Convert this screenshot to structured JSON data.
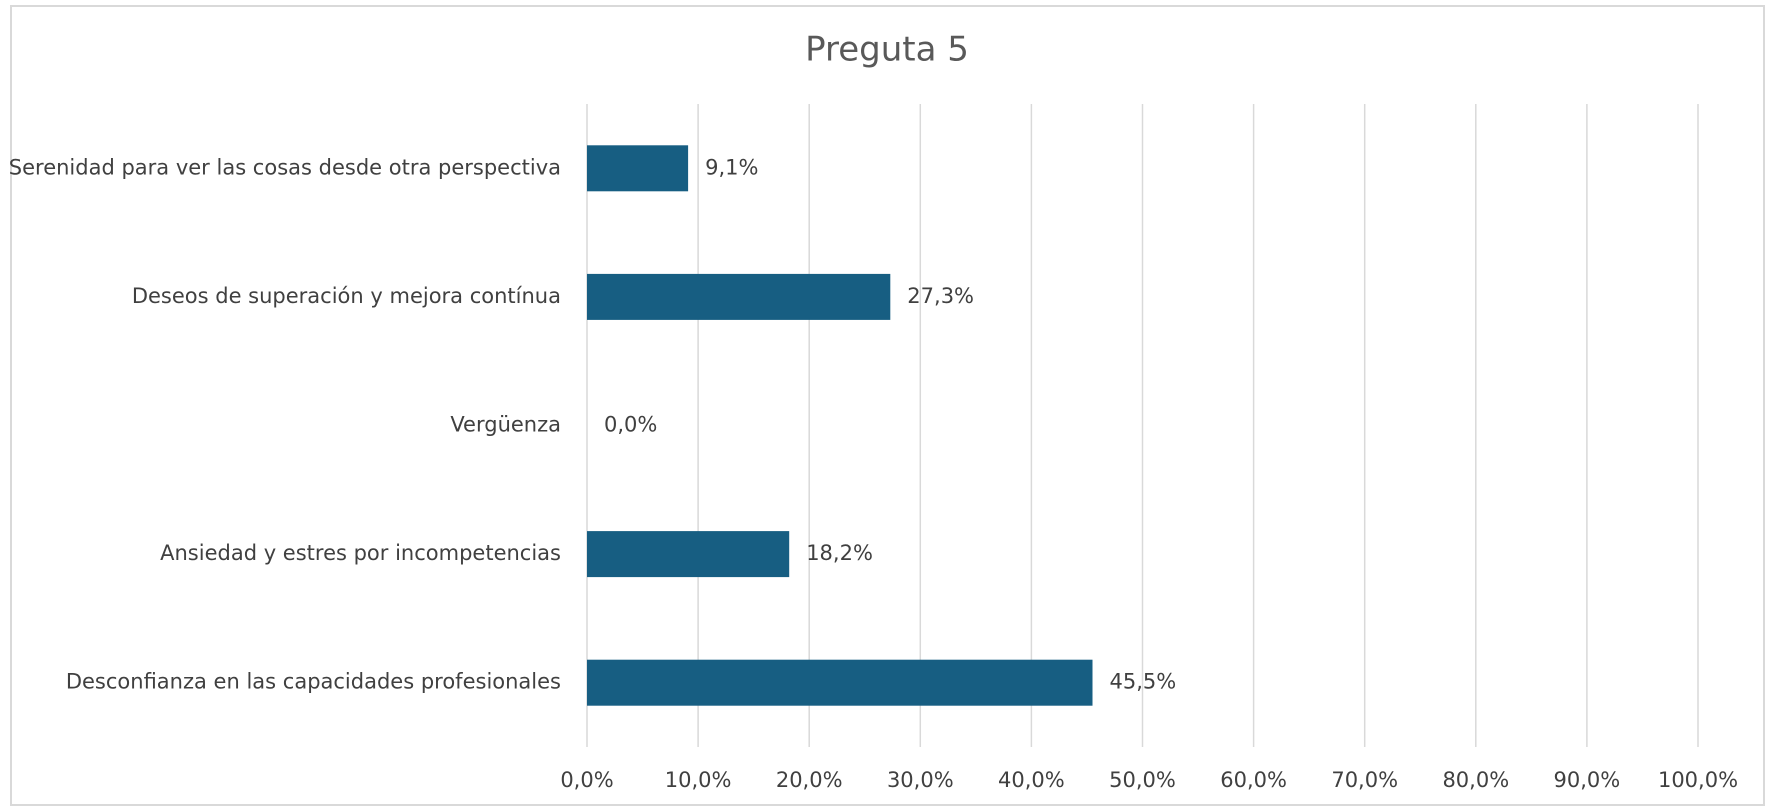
{
  "chart_data": {
    "type": "bar",
    "orientation": "horizontal",
    "title": "Preguta 5",
    "categories": [
      "Serenidad para ver las cosas desde otra perspectiva",
      "Deseos de superación y mejora contínua",
      "Vergüenza",
      "Ansiedad y estres por incompetencias",
      "Desconfianza en las capacidades profesionales"
    ],
    "values": [
      9.1,
      27.3,
      0,
      18.2,
      45.5
    ],
    "value_labels": [
      "9,1%",
      "27,3%",
      "0,0%",
      "18,2%",
      "45,5%"
    ],
    "color": "#175e82",
    "xlim": [
      0,
      100
    ],
    "xticks": [
      {
        "value": 0,
        "label": "0,0%"
      },
      {
        "value": 10,
        "label": "10,0%"
      },
      {
        "value": 20,
        "label": "20,0%"
      },
      {
        "value": 30,
        "label": "30,0%"
      },
      {
        "value": 40,
        "label": "40,0%"
      },
      {
        "value": 50,
        "label": "50,0%"
      },
      {
        "value": 60,
        "label": "60,0%"
      },
      {
        "value": 70,
        "label": "70,0%"
      },
      {
        "value": 80,
        "label": "80,0%"
      },
      {
        "value": 90,
        "label": "90,0%"
      },
      {
        "value": 100,
        "label": "100,0%"
      }
    ],
    "grid": true
  }
}
